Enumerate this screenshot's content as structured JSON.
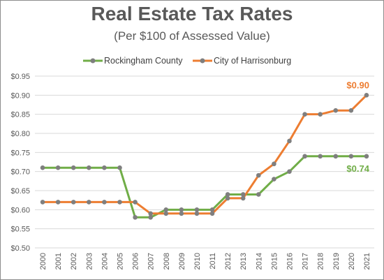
{
  "chart_data": {
    "type": "line",
    "title": "Real Estate Tax Rates",
    "subtitle": "(Per $100 of Assessed Value)",
    "xlabel": "",
    "ylabel": "",
    "categories": [
      "2000",
      "2001",
      "2002",
      "2003",
      "2004",
      "2005",
      "2006",
      "2007",
      "2008",
      "2009",
      "2010",
      "2011",
      "2012",
      "2013",
      "2014",
      "2015",
      "2016",
      "2017",
      "2018",
      "2019",
      "2020",
      "2021"
    ],
    "ylim": [
      0.5,
      0.95
    ],
    "yticks": [
      "$0.50",
      "$0.55",
      "$0.60",
      "$0.65",
      "$0.70",
      "$0.75",
      "$0.80",
      "$0.85",
      "$0.90",
      "$0.95"
    ],
    "grid": true,
    "legend": "top-center",
    "series": [
      {
        "name": "Rockingham County",
        "color": "#70ad47",
        "values": [
          0.71,
          0.71,
          0.71,
          0.71,
          0.71,
          0.71,
          0.58,
          0.58,
          0.6,
          0.6,
          0.6,
          0.6,
          0.64,
          0.64,
          0.64,
          0.68,
          0.7,
          0.74,
          0.74,
          0.74,
          0.74,
          0.74
        ],
        "end_label": "$0.74"
      },
      {
        "name": "City of Harrisonburg",
        "color": "#ed7d31",
        "values": [
          0.62,
          0.62,
          0.62,
          0.62,
          0.62,
          0.62,
          0.62,
          0.59,
          0.59,
          0.59,
          0.59,
          0.59,
          0.63,
          0.63,
          0.69,
          0.72,
          0.78,
          0.85,
          0.85,
          0.86,
          0.86,
          0.9
        ],
        "end_label": "$0.90"
      }
    ],
    "marker_color": "#7f7f7f"
  }
}
